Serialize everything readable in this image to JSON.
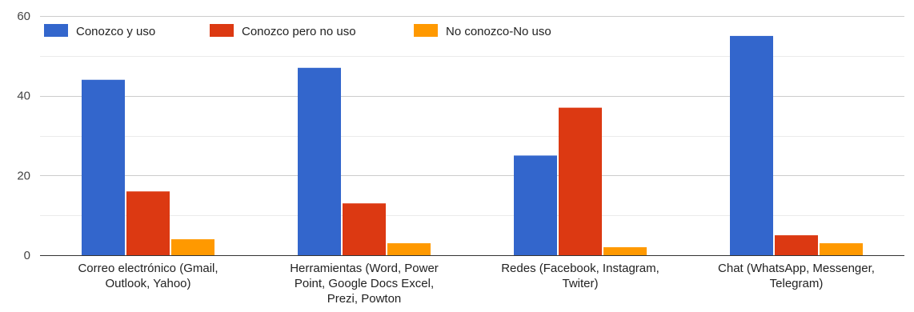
{
  "chart_data": {
    "type": "bar",
    "categories": [
      [
        "Correo electrónico (Gmail,",
        "Outlook, Yahoo)"
      ],
      [
        "Herramientas (Word, Power",
        "Point, Google Docs Excel,",
        "Prezi, Powton"
      ],
      [
        "Redes (Facebook, Instagram,",
        "Twiter)"
      ],
      [
        "Chat (WhatsApp, Messenger,",
        "Telegram)"
      ]
    ],
    "series": [
      {
        "name": "Conozco y uso",
        "color": "#3366cc",
        "values": [
          44,
          47,
          25,
          55
        ]
      },
      {
        "name": "Conozco pero no uso",
        "color": "#dc3912",
        "values": [
          16,
          13,
          37,
          5
        ]
      },
      {
        "name": "No conozco-No uso",
        "color": "#ff9900",
        "values": [
          4,
          3,
          2,
          3
        ]
      }
    ],
    "yticks": [
      "0",
      "20",
      "40",
      "60"
    ],
    "ylim": [
      0,
      60
    ],
    "grid": true,
    "legend_position": "top-left"
  }
}
